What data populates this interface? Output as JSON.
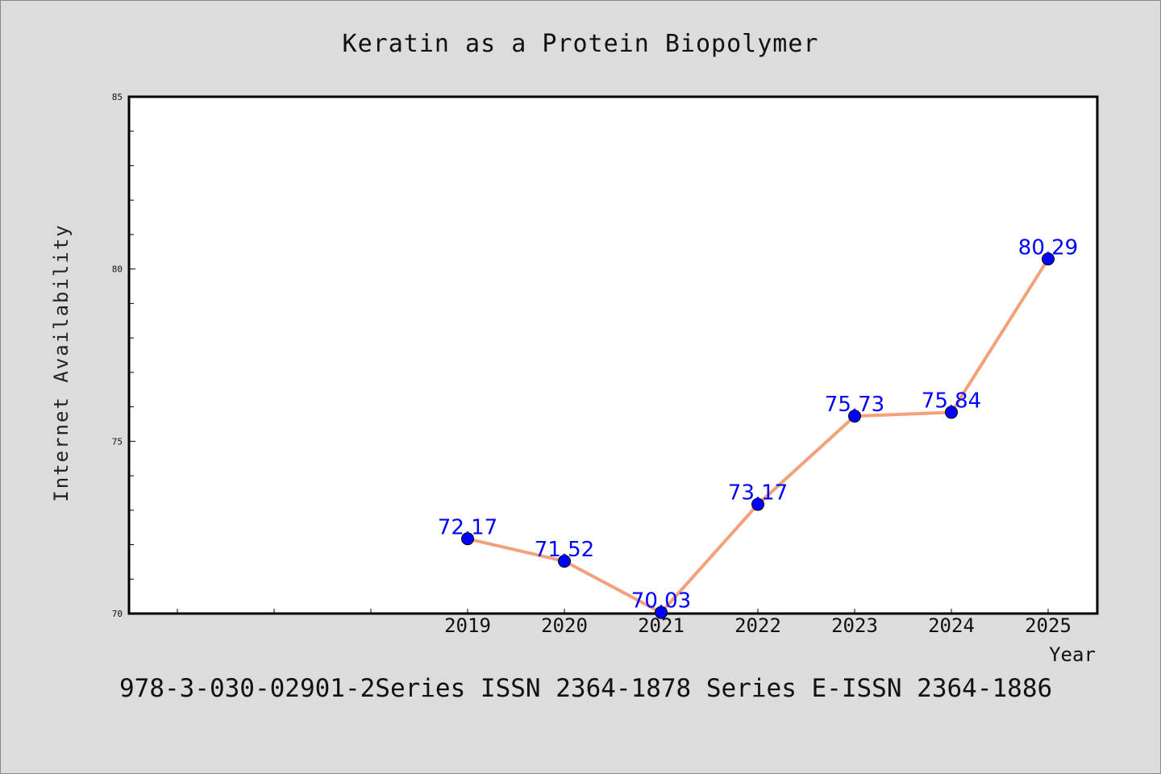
{
  "chart_data": {
    "type": "line",
    "title": "Keratin as a Protein Biopolymer",
    "xlabel": "Year",
    "ylabel": "Internet Availability",
    "x": [
      "2019",
      "2020",
      "2021",
      "2022",
      "2023",
      "2024",
      "2025"
    ],
    "series": [
      {
        "values": [
          72.17,
          71.52,
          70.03,
          73.17,
          75.73,
          75.84,
          80.29
        ],
        "data_labels": [
          "72.17",
          "71.52",
          "70.03",
          "73.17",
          "75.73",
          "75.84",
          "80.29"
        ]
      }
    ],
    "ylim": [
      70,
      85
    ],
    "yticks": [
      "70",
      "75",
      "80",
      "85"
    ],
    "grid": false,
    "line_color": "#f4a07a",
    "marker_color": "#0000ff",
    "label_color": "#0000ff",
    "background": "#dcdcdc",
    "plot_background": "#ffffff"
  },
  "footer": {
    "text": "978-3-030-02901-2Series ISSN 2364-1878 Series E-ISSN 2364-1886"
  }
}
